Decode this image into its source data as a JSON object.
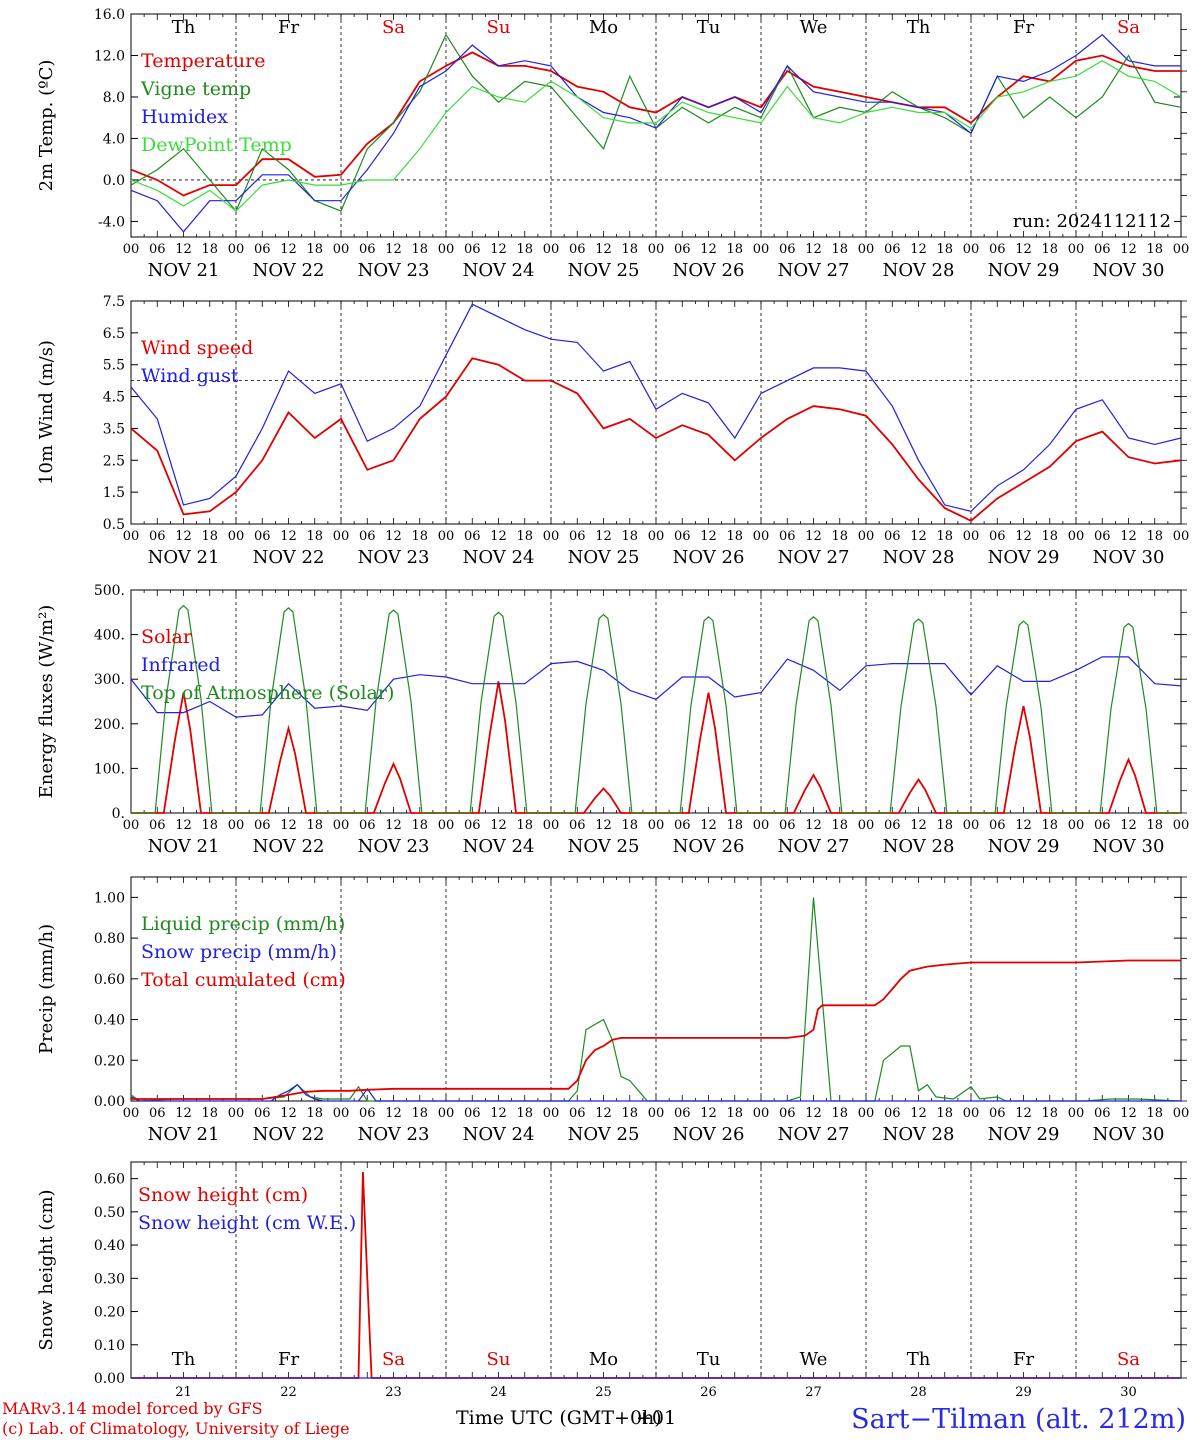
{
  "colors": {
    "red": "#e00000",
    "darkgreen": "#1f8a1f",
    "blue": "#2020e0",
    "lightgreen": "#3cdc3c",
    "black": "#000000",
    "footer_blue": "#2a2ae6"
  },
  "x_axis": {
    "dates": [
      "NOV 21",
      "NOV 22",
      "NOV 23",
      "NOV 24",
      "NOV 25",
      "NOV 26",
      "NOV 27",
      "NOV 28",
      "NOV 29",
      "NOV 30"
    ],
    "day_numbers": [
      "21",
      "22",
      "23",
      "24",
      "25",
      "26",
      "27",
      "28",
      "29",
      "30"
    ],
    "weekdays": [
      "Th",
      "Fr",
      "Sa",
      "Su",
      "Mo",
      "Tu",
      "We",
      "Th",
      "Fr",
      "Sa"
    ],
    "weekend_flags": [
      false,
      false,
      true,
      true,
      false,
      false,
      false,
      false,
      false,
      true
    ],
    "hour_labels": [
      "00",
      "06",
      "12",
      "18"
    ],
    "final_hour_label": "00"
  },
  "footer": {
    "model_line1": "MARv3.14 model forced by GFS",
    "model_line2": "(c) Lab. of Climatology, University of Liege",
    "xlabel": "Time UTC (GMT+0h)",
    "xlabel_overlay": "+01",
    "station": "Sart−Tilman (alt. 212m)"
  },
  "chart_data": [
    {
      "type": "line",
      "ylabel": "2m Temp. (ºC)",
      "ylim": [
        -5.5,
        16.0
      ],
      "yticks": [
        "16.0",
        "12.0",
        "8.0",
        "4.0",
        "0.0",
        "-4.0"
      ],
      "ytick_values": [
        16,
        12,
        8,
        4,
        0,
        -4
      ],
      "reference_line": 0,
      "annotation": "run: 2024112112",
      "x_unit": "hours since NOV 21 00 UTC",
      "series": [
        {
          "name": "Temperature",
          "color": "red",
          "x": [
            0,
            6,
            12,
            18,
            24,
            30,
            36,
            42,
            48,
            54,
            60,
            66,
            72,
            78,
            84,
            90,
            96,
            102,
            108,
            114,
            120,
            126,
            132,
            138,
            144,
            150,
            156,
            162,
            168,
            174,
            180,
            186,
            192,
            198,
            204,
            210,
            216,
            222,
            228,
            234,
            240
          ],
          "y": [
            1,
            0,
            -1.5,
            -0.5,
            -0.5,
            2,
            2,
            0.3,
            0.5,
            3.5,
            5.5,
            9.5,
            11,
            12.3,
            11,
            11,
            10.5,
            9,
            8.5,
            7,
            6.5,
            8,
            7,
            8,
            7,
            10.5,
            9,
            8.5,
            8,
            7.5,
            7,
            7,
            5.5,
            8,
            10,
            9.5,
            11.5,
            12,
            11,
            10.5,
            10.5
          ]
        },
        {
          "name": "Vigne temp",
          "color": "darkgreen",
          "x": [
            0,
            6,
            12,
            18,
            24,
            30,
            36,
            42,
            48,
            54,
            60,
            66,
            72,
            78,
            84,
            90,
            96,
            102,
            108,
            114,
            120,
            126,
            132,
            138,
            144,
            150,
            156,
            162,
            168,
            174,
            180,
            186,
            192,
            198,
            204,
            210,
            216,
            222,
            228,
            234,
            240
          ],
          "y": [
            -0.5,
            1,
            3,
            0,
            -3,
            3,
            1,
            -2,
            -3,
            3,
            5.5,
            8.5,
            14,
            10,
            7.5,
            9.5,
            9,
            6,
            3,
            10,
            5,
            7,
            5.5,
            7,
            6,
            11,
            6,
            7,
            6.5,
            8.5,
            7,
            6,
            4.5,
            10,
            6,
            8,
            6,
            8,
            12,
            7.5,
            7
          ]
        },
        {
          "name": "Humidex",
          "color": "blue",
          "x": [
            0,
            6,
            12,
            18,
            24,
            30,
            36,
            42,
            48,
            54,
            60,
            66,
            72,
            78,
            84,
            90,
            96,
            102,
            108,
            114,
            120,
            126,
            132,
            138,
            144,
            150,
            156,
            162,
            168,
            174,
            180,
            186,
            192,
            198,
            204,
            210,
            216,
            222,
            228,
            234,
            240
          ],
          "y": [
            -1,
            -2,
            -5,
            -2,
            -2,
            0.5,
            0.5,
            -2,
            -2,
            1,
            4.5,
            9,
            10.5,
            13,
            11,
            11.5,
            11,
            8,
            6.5,
            6,
            5,
            8,
            7,
            8,
            6.5,
            11,
            8.5,
            8,
            7.5,
            7.5,
            7,
            6.5,
            4.5,
            10,
            9.5,
            10.5,
            12,
            14,
            11.5,
            11,
            11
          ]
        },
        {
          "name": "DewPoint Temp",
          "color": "lightgreen",
          "x": [
            0,
            6,
            12,
            18,
            24,
            30,
            36,
            42,
            48,
            54,
            60,
            66,
            72,
            78,
            84,
            90,
            96,
            102,
            108,
            114,
            120,
            126,
            132,
            138,
            144,
            150,
            156,
            162,
            168,
            174,
            180,
            186,
            192,
            198,
            204,
            210,
            216,
            222,
            228,
            234,
            240
          ],
          "y": [
            0,
            -1,
            -2.5,
            -1,
            -3,
            -0.5,
            0,
            -0.5,
            -0.5,
            0,
            0,
            3,
            6.5,
            9,
            8,
            7.5,
            9.5,
            8,
            6,
            5.5,
            5.5,
            7.5,
            6.5,
            6,
            5.5,
            9,
            6,
            5.5,
            6.5,
            7,
            6.5,
            6.5,
            5,
            8,
            8.5,
            9.5,
            10,
            11.5,
            10,
            9.5,
            8
          ]
        }
      ]
    },
    {
      "type": "line",
      "ylabel": "10m Wind (m/s)",
      "ylim": [
        0.5,
        7.5
      ],
      "yticks": [
        "7.5",
        "6.5",
        "5.5",
        "4.5",
        "3.5",
        "2.5",
        "1.5",
        "0.5"
      ],
      "ytick_values": [
        7.5,
        6.5,
        5.5,
        4.5,
        3.5,
        2.5,
        1.5,
        0.5
      ],
      "reference_line": 5,
      "x_unit": "hours since NOV 21 00 UTC",
      "series": [
        {
          "name": "Wind speed",
          "color": "red",
          "x": [
            0,
            6,
            12,
            18,
            24,
            30,
            36,
            42,
            48,
            54,
            60,
            66,
            72,
            78,
            84,
            90,
            96,
            102,
            108,
            114,
            120,
            126,
            132,
            138,
            144,
            150,
            156,
            162,
            168,
            174,
            180,
            186,
            192,
            198,
            204,
            210,
            216,
            222,
            228,
            234,
            240
          ],
          "y": [
            3.5,
            2.8,
            0.8,
            0.9,
            1.5,
            2.5,
            4,
            3.2,
            3.8,
            2.2,
            2.5,
            3.8,
            4.5,
            5.7,
            5.5,
            5,
            5,
            4.6,
            3.5,
            3.8,
            3.2,
            3.6,
            3.3,
            2.5,
            3.2,
            3.8,
            4.2,
            4.1,
            3.9,
            3,
            1.9,
            1,
            0.6,
            1.3,
            1.8,
            2.3,
            3.1,
            3.4,
            2.6,
            2.4,
            2.5
          ]
        },
        {
          "name": "Wind gust",
          "color": "blue",
          "x": [
            0,
            6,
            12,
            18,
            24,
            30,
            36,
            42,
            48,
            54,
            60,
            66,
            72,
            78,
            84,
            90,
            96,
            102,
            108,
            114,
            120,
            126,
            132,
            138,
            144,
            150,
            156,
            162,
            168,
            174,
            180,
            186,
            192,
            198,
            204,
            210,
            216,
            222,
            228,
            234,
            240
          ],
          "y": [
            4.8,
            3.8,
            1.1,
            1.3,
            2,
            3.5,
            5.3,
            4.6,
            4.9,
            3.1,
            3.5,
            4.2,
            5.8,
            7.4,
            7,
            6.6,
            6.3,
            6.2,
            5.3,
            5.6,
            4.1,
            4.6,
            4.3,
            3.2,
            4.6,
            5,
            5.4,
            5.4,
            5.3,
            4.2,
            2.5,
            1.1,
            0.9,
            1.7,
            2.2,
            3,
            4.1,
            4.4,
            3.2,
            3,
            3.2
          ]
        }
      ]
    },
    {
      "type": "line",
      "ylabel": "Energy fluxes (W/m²)",
      "ylim": [
        0,
        500
      ],
      "yticks": [
        "500.",
        "400.",
        "300.",
        "200.",
        "100.",
        "0."
      ],
      "ytick_values": [
        500,
        400,
        300,
        200,
        100,
        0
      ],
      "x_unit": "hours since NOV 21 00 UTC",
      "series": [
        {
          "name": "Solar",
          "color": "red",
          "pulse_shape": "single",
          "peak_hours": [
            12,
            36,
            60,
            84,
            108,
            132,
            156,
            180,
            204,
            228
          ],
          "peak_values": [
            270,
            190,
            110,
            295,
            55,
            270,
            85,
            75,
            240,
            120
          ]
        },
        {
          "name": "Infrared",
          "color": "blue",
          "x": [
            0,
            6,
            12,
            18,
            24,
            30,
            36,
            42,
            48,
            54,
            60,
            66,
            72,
            78,
            84,
            90,
            96,
            102,
            108,
            114,
            120,
            126,
            132,
            138,
            144,
            150,
            156,
            162,
            168,
            174,
            180,
            186,
            192,
            198,
            204,
            210,
            216,
            222,
            228,
            234,
            240
          ],
          "y": [
            300,
            225,
            225,
            250,
            215,
            220,
            290,
            235,
            240,
            230,
            300,
            310,
            305,
            290,
            290,
            290,
            335,
            340,
            320,
            275,
            255,
            305,
            305,
            260,
            270,
            345,
            320,
            275,
            330,
            335,
            335,
            335,
            265,
            330,
            295,
            295,
            320,
            350,
            350,
            290,
            285
          ]
        },
        {
          "name": "Top of Atmosphere (Solar)",
          "color": "darkgreen",
          "pulse_shape": "wide",
          "peak_hours": [
            12,
            36,
            60,
            84,
            108,
            132,
            156,
            180,
            204,
            228
          ],
          "peak_values": [
            465,
            460,
            455,
            450,
            445,
            440,
            440,
            435,
            430,
            425
          ]
        }
      ]
    },
    {
      "type": "line",
      "ylabel": "Precip (mm/h)",
      "ylim": [
        0,
        1.1
      ],
      "yticks": [
        "1.00",
        "0.80",
        "0.60",
        "0.40",
        "0.20",
        "0.00"
      ],
      "ytick_values": [
        1,
        0.8,
        0.6,
        0.4,
        0.2,
        0
      ],
      "x_unit": "hours since NOV 21 00 UTC",
      "series": [
        {
          "name": "Liquid precip (mm/h)",
          "color": "darkgreen",
          "x": [
            0,
            2,
            10,
            30,
            35,
            38,
            41,
            44,
            50,
            52,
            54,
            100,
            102,
            104,
            108,
            110,
            112,
            114,
            116,
            118,
            120,
            150,
            153,
            156,
            158,
            160,
            162,
            170,
            172,
            176,
            178,
            180,
            182,
            184,
            188,
            192,
            194,
            198,
            200,
            218,
            224,
            230,
            240
          ],
          "y": [
            0.03,
            0,
            0.01,
            0.01,
            0.02,
            0.08,
            0.02,
            0.01,
            0.01,
            0.07,
            0,
            0,
            0.05,
            0.35,
            0.4,
            0.3,
            0.12,
            0.1,
            0.05,
            0,
            0,
            0,
            0.02,
            1.0,
            0.5,
            0,
            0,
            0,
            0.2,
            0.27,
            0.27,
            0.05,
            0.08,
            0.02,
            0.01,
            0.07,
            0.01,
            0.02,
            0,
            0,
            0.01,
            0.01,
            0
          ]
        },
        {
          "name": "Snow precip (mm/h)",
          "color": "blue",
          "x": [
            0,
            2,
            32,
            34,
            36,
            38,
            40,
            42,
            44,
            52,
            54,
            56,
            240
          ],
          "y": [
            0.02,
            0,
            0,
            0.03,
            0.05,
            0.08,
            0.03,
            0.01,
            0,
            0,
            0.06,
            0,
            0
          ]
        },
        {
          "name": "Total cumulated (cm)",
          "color": "red",
          "x": [
            0,
            30,
            36,
            40,
            44,
            50,
            54,
            60,
            90,
            100,
            102,
            104,
            106,
            108,
            110,
            112,
            114,
            120,
            150,
            154,
            156,
            157,
            158,
            160,
            170,
            172,
            174,
            176,
            178,
            180,
            182,
            186,
            192,
            204,
            216,
            228,
            240
          ],
          "y": [
            0.01,
            0.01,
            0.03,
            0.045,
            0.05,
            0.05,
            0.055,
            0.06,
            0.06,
            0.06,
            0.1,
            0.2,
            0.25,
            0.27,
            0.3,
            0.31,
            0.31,
            0.31,
            0.31,
            0.32,
            0.35,
            0.45,
            0.47,
            0.47,
            0.47,
            0.5,
            0.55,
            0.6,
            0.64,
            0.65,
            0.66,
            0.67,
            0.68,
            0.68,
            0.68,
            0.69,
            0.69
          ]
        }
      ]
    },
    {
      "type": "line",
      "ylabel": "Snow height (cm)",
      "ylim": [
        0,
        0.65
      ],
      "yticks": [
        "0.60",
        "0.50",
        "0.40",
        "0.30",
        "0.20",
        "0.10",
        "0.00"
      ],
      "ytick_values": [
        0.6,
        0.5,
        0.4,
        0.3,
        0.2,
        0.1,
        0
      ],
      "x_unit": "hours since NOV 21 00 UTC",
      "series": [
        {
          "name": "Snow height (cm)",
          "color": "red",
          "x": [
            0,
            52,
            53,
            54,
            55,
            240
          ],
          "y": [
            0,
            0,
            0.62,
            0.3,
            0,
            0
          ]
        },
        {
          "name": "Snow height (cm W.E.)",
          "color": "blue",
          "x": [
            0,
            240
          ],
          "y": [
            0,
            0
          ]
        }
      ]
    }
  ]
}
